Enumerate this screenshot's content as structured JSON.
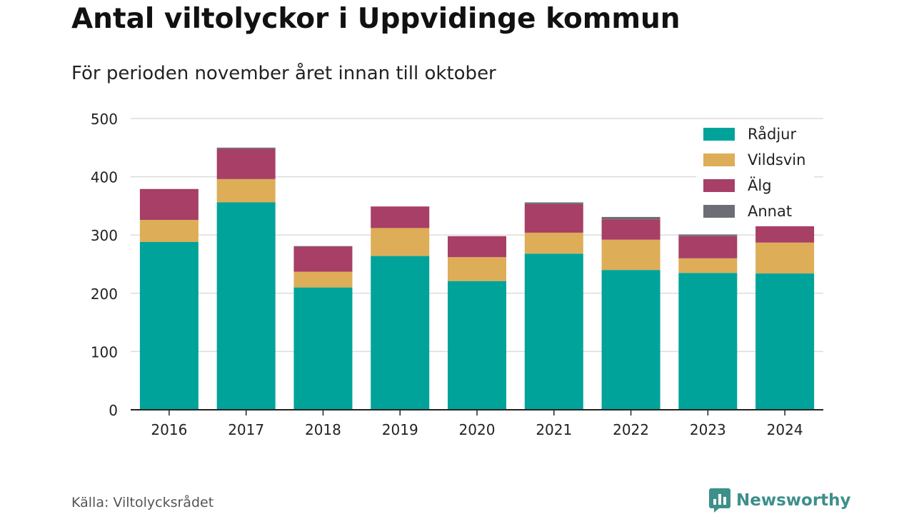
{
  "header": {
    "title": "Antal viltolyckor i Uppvidinge kommun",
    "subtitle": "För perioden november året innan till oktober"
  },
  "footer": {
    "source": "Källa: Viltolycksrådet",
    "brand": "Newsworthy",
    "brand_icon": "newsworthy-logo-icon",
    "brand_color": "#3d8f8a"
  },
  "chart_data": {
    "type": "bar",
    "stacked": true,
    "categories": [
      "2016",
      "2017",
      "2018",
      "2019",
      "2020",
      "2021",
      "2022",
      "2023",
      "2024"
    ],
    "series": [
      {
        "name": "Rådjur",
        "color": "#00a39a",
        "values": [
          288,
          356,
          210,
          264,
          221,
          268,
          240,
          235,
          234
        ]
      },
      {
        "name": "Vildsvin",
        "color": "#ddad58",
        "values": [
          38,
          40,
          27,
          48,
          41,
          36,
          52,
          25,
          53
        ]
      },
      {
        "name": "Älg",
        "color": "#a73f66",
        "values": [
          53,
          52,
          43,
          37,
          36,
          49,
          35,
          38,
          28
        ]
      },
      {
        "name": "Annat",
        "color": "#6d6e75",
        "values": [
          0,
          2,
          1,
          0,
          0,
          3,
          4,
          3,
          0
        ]
      }
    ],
    "ylim": [
      0,
      500
    ],
    "yticks": [
      0,
      100,
      200,
      300,
      400,
      500
    ],
    "grid": true,
    "legend": "top-right"
  }
}
